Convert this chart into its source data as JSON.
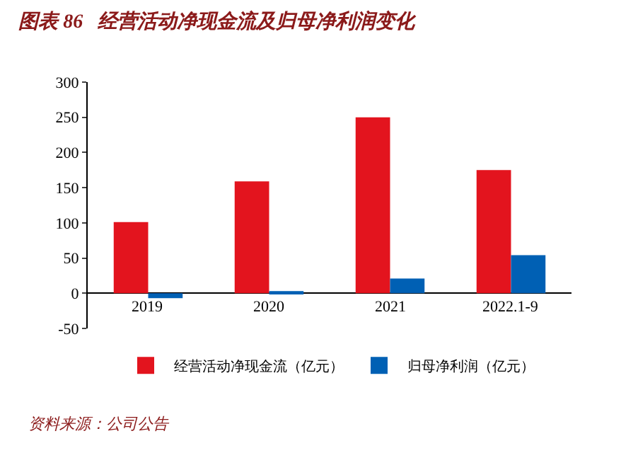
{
  "chart_data": {
    "type": "bar",
    "title": "图表 86   经营活动净现金流及归母净利润变化",
    "categories": [
      "2019",
      "2020",
      "2021",
      "2022.1-9"
    ],
    "series": [
      {
        "name": "经营活动净现金流（亿元）",
        "color": "#e3141e",
        "values": [
          101,
          159,
          250,
          175
        ]
      },
      {
        "name": "归母净利润（亿元）",
        "color": "#0060b4",
        "values": [
          -7,
          3,
          21,
          54
        ]
      }
    ],
    "ylim": [
      -50,
      300
    ],
    "yticks": [
      -50,
      0,
      50,
      100,
      150,
      200,
      250,
      300
    ],
    "legend": "bottom",
    "annotations": [
      "资料来源：公司公告"
    ]
  }
}
